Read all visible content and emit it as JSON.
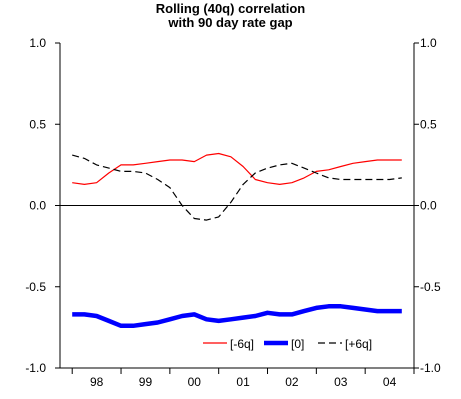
{
  "chart_data": {
    "type": "line",
    "title_line1": "Rolling (40q) correlation",
    "title_line2": "with 90 day rate gap",
    "xlabel": "",
    "ylabel": "",
    "ylim": [
      -1.0,
      1.0
    ],
    "yticks": [
      "1.0",
      "0.5",
      "0.0",
      "-0.5",
      "-1.0"
    ],
    "ytick_values": [
      1.0,
      0.5,
      0.0,
      -0.5,
      -1.0
    ],
    "xlim": [
      0,
      29
    ],
    "x_categories": [
      "98",
      "99",
      "00",
      "01",
      "02",
      "03",
      "04"
    ],
    "grid": false,
    "legend_position": "bottom-right",
    "colors": {
      "neg6q": "#ff0000",
      "zero": "#0000ff",
      "pos6q": "#000000",
      "axis": "#000000"
    },
    "x": [
      1,
      2,
      3,
      4,
      5,
      6,
      7,
      8,
      9,
      10,
      11,
      12,
      13,
      14,
      15,
      16,
      17,
      18,
      19,
      20,
      21,
      22,
      23,
      24,
      25,
      26,
      27,
      28
    ],
    "series": [
      {
        "name": "[-6q]",
        "key": "neg6q",
        "style": "thin-solid",
        "values": [
          0.14,
          0.13,
          0.14,
          0.2,
          0.25,
          0.25,
          0.26,
          0.27,
          0.28,
          0.28,
          0.27,
          0.31,
          0.32,
          0.3,
          0.24,
          0.16,
          0.14,
          0.13,
          0.14,
          0.17,
          0.21,
          0.22,
          0.24,
          0.26,
          0.27,
          0.28,
          0.28,
          0.28
        ]
      },
      {
        "name": "[0]",
        "key": "zero",
        "style": "thick-solid",
        "values": [
          -0.67,
          -0.67,
          -0.68,
          -0.71,
          -0.74,
          -0.74,
          -0.73,
          -0.72,
          -0.7,
          -0.68,
          -0.67,
          -0.7,
          -0.71,
          -0.7,
          -0.69,
          -0.68,
          -0.66,
          -0.67,
          -0.67,
          -0.65,
          -0.63,
          -0.62,
          -0.62,
          -0.63,
          -0.64,
          -0.65,
          -0.65,
          -0.65
        ]
      },
      {
        "name": "[+6q]",
        "key": "pos6q",
        "style": "dashed",
        "values": [
          0.31,
          0.29,
          0.25,
          0.23,
          0.21,
          0.21,
          0.2,
          0.16,
          0.11,
          0.0,
          -0.08,
          -0.09,
          -0.07,
          0.02,
          0.13,
          0.2,
          0.23,
          0.25,
          0.26,
          0.23,
          0.2,
          0.17,
          0.16,
          0.16,
          0.16,
          0.16,
          0.16,
          0.17
        ]
      }
    ]
  }
}
